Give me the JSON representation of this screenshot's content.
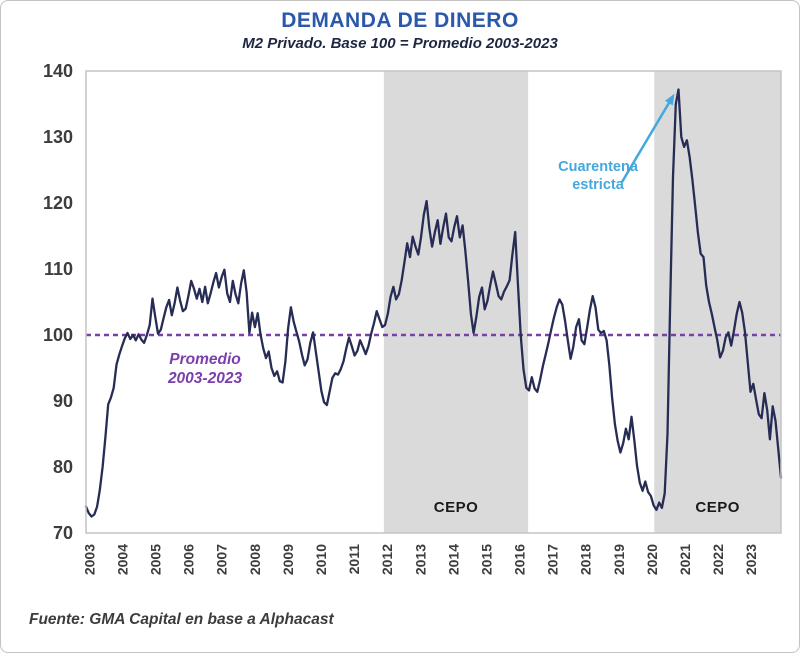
{
  "header": {
    "title": "DEMANDA DE DINERO",
    "subtitle": "M2 Privado. Base 100 = Promedio 2003-2023"
  },
  "footer": {
    "source": "Fuente: GMA Capital en base a Alphacast"
  },
  "chart_data": {
    "type": "line",
    "title": "DEMANDA DE DINERO",
    "subtitle": "M2 Privado. Base 100 = Promedio 2003-2023",
    "frequency": "monthly",
    "x_range_years": [
      2003,
      2024
    ],
    "ylim": [
      70,
      140
    ],
    "y_ticks": [
      70,
      80,
      90,
      100,
      110,
      120,
      130,
      140
    ],
    "x_tick_years": [
      "2003",
      "2004",
      "2005",
      "2006",
      "2007",
      "2008",
      "2009",
      "2010",
      "2011",
      "2012",
      "2013",
      "2014",
      "2015",
      "2016",
      "2017",
      "2018",
      "2019",
      "2020",
      "2021",
      "2022",
      "2023"
    ],
    "grid": false,
    "line_color": "#272c55",
    "region_color": "#dadada",
    "frame_color": "#c4c4c4",
    "reference_line": {
      "value": 100,
      "color": "#7b3fac",
      "label_line1": "Promedio",
      "label_line2": "2003-2023"
    },
    "shaded_regions": [
      {
        "label": "CEPO",
        "start_year": 2012.0,
        "end_year": 2016.36
      },
      {
        "label": "CEPO",
        "start_year": 2020.17,
        "end_year": 2024.0
      }
    ],
    "annotation": {
      "text_line1": "Cuarentena",
      "text_line2": "estricta",
      "color": "#44a8de",
      "points_to_value": 137,
      "points_to_year": 2020.9
    },
    "series": [
      {
        "name": "M2 Privado. Base 100 = Promedio 2003-2023",
        "start": "2003-01",
        "values_by_year": [
          {
            "year": 2003,
            "values": [
              74.0,
              73.0,
              72.5,
              72.8,
              74.0,
              76.5,
              80.0,
              84.5,
              89.5,
              90.5,
              92.0,
              95.5
            ]
          },
          {
            "year": 2004,
            "values": [
              97.0,
              98.3,
              99.5,
              100.3,
              99.4,
              100.0,
              99.2,
              100.1,
              99.3,
              98.8,
              100.0,
              101.5
            ]
          },
          {
            "year": 2005,
            "values": [
              105.5,
              102.8,
              100.2,
              100.8,
              102.5,
              104.2,
              105.3,
              103.0,
              104.8,
              107.2,
              105.2,
              103.6
            ]
          },
          {
            "year": 2006,
            "values": [
              104.0,
              106.0,
              108.2,
              107.0,
              105.5,
              107.0,
              105.0,
              107.3,
              104.8,
              106.3,
              108.0,
              109.4
            ]
          },
          {
            "year": 2007,
            "values": [
              107.2,
              108.8,
              109.9,
              106.3,
              105.0,
              108.2,
              106.2,
              104.8,
              107.8,
              109.8,
              106.5,
              100.3
            ]
          },
          {
            "year": 2008,
            "values": [
              103.4,
              101.2,
              103.3,
              100.2,
              98.0,
              96.5,
              97.5,
              95.0,
              93.8,
              94.5,
              93.0,
              92.8
            ]
          },
          {
            "year": 2009,
            "values": [
              96.0,
              101.0,
              104.2,
              102.0,
              100.5,
              99.0,
              97.0,
              95.4,
              96.3,
              98.8,
              100.4,
              97.5
            ]
          },
          {
            "year": 2010,
            "values": [
              94.5,
              91.5,
              89.8,
              89.4,
              91.5,
              93.5,
              94.2,
              94.0,
              94.8,
              96.0,
              98.0,
              99.6
            ]
          },
          {
            "year": 2011,
            "values": [
              98.3,
              96.9,
              97.6,
              99.2,
              98.2,
              97.1,
              98.3,
              100.2,
              101.8,
              103.6,
              102.4,
              101.2
            ]
          },
          {
            "year": 2012,
            "values": [
              101.5,
              103.2,
              105.8,
              107.3,
              105.4,
              106.2,
              108.3,
              111.0,
              113.9,
              111.8,
              114.9,
              113.4
            ]
          },
          {
            "year": 2013,
            "values": [
              112.2,
              114.8,
              118.2,
              120.3,
              116.2,
              113.4,
              115.6,
              117.4,
              113.8,
              116.3,
              118.4,
              114.8
            ]
          },
          {
            "year": 2014,
            "values": [
              114.2,
              116.4,
              118.0,
              114.8,
              116.6,
              112.8,
              108.2,
              103.2,
              100.3,
              102.8,
              105.8,
              107.2
            ]
          },
          {
            "year": 2015,
            "values": [
              103.9,
              105.2,
              107.6,
              109.6,
              107.8,
              105.9,
              105.4,
              106.6,
              107.4,
              108.3,
              112.2,
              115.6
            ]
          },
          {
            "year": 2016,
            "values": [
              107.5,
              100.0,
              94.8,
              92.0,
              91.6,
              93.6,
              91.9,
              91.4,
              93.2,
              95.3,
              97.0,
              98.8
            ]
          },
          {
            "year": 2017,
            "values": [
              100.8,
              102.6,
              104.2,
              105.4,
              104.6,
              102.2,
              99.2,
              96.4,
              98.2,
              101.2,
              102.4,
              99.2
            ]
          },
          {
            "year": 2018,
            "values": [
              98.6,
              101.2,
              103.8,
              105.9,
              104.2,
              100.8,
              100.3,
              100.6,
              99.2,
              95.5,
              90.5,
              86.5
            ]
          },
          {
            "year": 2019,
            "values": [
              84.0,
              82.2,
              83.6,
              85.8,
              84.2,
              87.6,
              84.2,
              80.2,
              77.6,
              76.4,
              77.8,
              76.2
            ]
          },
          {
            "year": 2020,
            "values": [
              75.6,
              74.2,
              73.5,
              74.6,
              73.8,
              76.0,
              85.0,
              105.0,
              124.0,
              135.0,
              137.2,
              130.0
            ]
          },
          {
            "year": 2021,
            "values": [
              128.5,
              129.5,
              127.0,
              123.5,
              119.5,
              115.5,
              112.3,
              111.8,
              107.5,
              105.0,
              103.2,
              101.2
            ]
          },
          {
            "year": 2022,
            "values": [
              99.2,
              96.6,
              97.6,
              99.6,
              100.4,
              98.4,
              100.6,
              103.2,
              105.0,
              103.4,
              100.4,
              95.8
            ]
          },
          {
            "year": 2023,
            "values": [
              91.4,
              92.6,
              90.2,
              88.0,
              87.4,
              91.2,
              88.6,
              84.2,
              89.2,
              87.0,
              82.8,
              78.4
            ]
          }
        ]
      }
    ]
  }
}
